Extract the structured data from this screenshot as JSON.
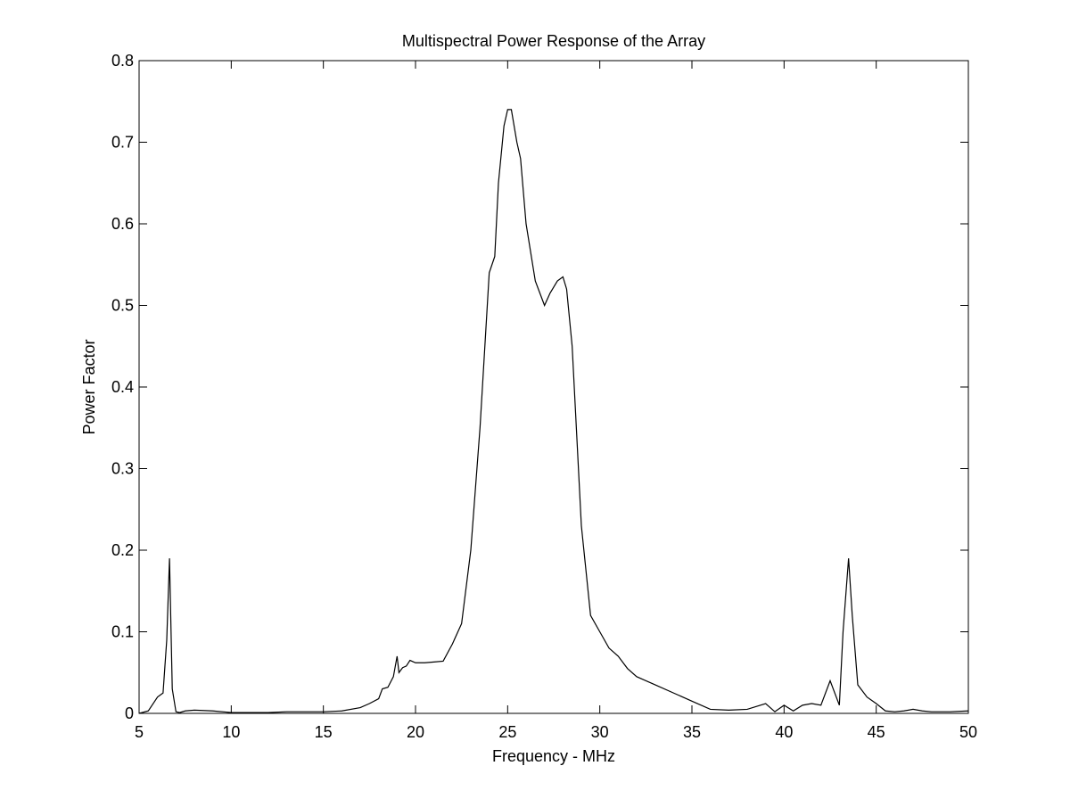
{
  "chart_data": {
    "type": "line",
    "title": "Multispectral Power Response of the Array",
    "xlabel": "Frequency - MHz",
    "ylabel": "Power Factor",
    "xlim": [
      5,
      50
    ],
    "ylim": [
      0,
      0.8
    ],
    "xticks": [
      5,
      10,
      15,
      20,
      25,
      30,
      35,
      40,
      45,
      50
    ],
    "yticks": [
      0,
      0.1,
      0.2,
      0.3,
      0.4,
      0.5,
      0.6,
      0.7,
      0.8
    ],
    "xtick_labels": [
      "5",
      "10",
      "15",
      "20",
      "25",
      "30",
      "35",
      "40",
      "45",
      "50"
    ],
    "ytick_labels": [
      "0",
      "0.1",
      "0.2",
      "0.3",
      "0.4",
      "0.5",
      "0.6",
      "0.7",
      "0.8"
    ],
    "grid": false,
    "legend": false,
    "line_color": "#000000",
    "series": [
      {
        "x": [
          5.0,
          5.5,
          6.0,
          6.3,
          6.5,
          6.65,
          6.8,
          7.0,
          7.2,
          7.5,
          8.0,
          9.0,
          10.0,
          11.0,
          12.0,
          13.0,
          14.0,
          15.0,
          16.0,
          17.0,
          17.5,
          18.0,
          18.2,
          18.5,
          18.8,
          19.0,
          19.1,
          19.3,
          19.5,
          19.7,
          20.0,
          20.5,
          21.0,
          21.5,
          22.0,
          22.3,
          22.5,
          23.0,
          23.5,
          24.0,
          24.3,
          24.5,
          24.8,
          25.0,
          25.2,
          25.5,
          25.7,
          26.0,
          26.5,
          27.0,
          27.3,
          27.7,
          28.0,
          28.2,
          28.5,
          29.0,
          29.5,
          30.0,
          30.5,
          31.0,
          31.5,
          32.0,
          33.0,
          34.0,
          35.0,
          36.0,
          37.0,
          38.0,
          39.0,
          39.5,
          40.0,
          40.5,
          41.0,
          41.5,
          42.0,
          42.5,
          43.0,
          43.2,
          43.5,
          43.7,
          44.0,
          44.5,
          45.0,
          45.5,
          46.0,
          46.5,
          47.0,
          47.5,
          48.0,
          49.0,
          50.0
        ],
        "y": [
          0.0,
          0.003,
          0.02,
          0.025,
          0.09,
          0.19,
          0.03,
          0.002,
          0.001,
          0.003,
          0.004,
          0.003,
          0.001,
          0.001,
          0.001,
          0.002,
          0.002,
          0.002,
          0.003,
          0.007,
          0.012,
          0.018,
          0.03,
          0.032,
          0.045,
          0.07,
          0.05,
          0.056,
          0.058,
          0.065,
          0.062,
          0.062,
          0.063,
          0.064,
          0.085,
          0.1,
          0.11,
          0.2,
          0.35,
          0.54,
          0.56,
          0.65,
          0.72,
          0.74,
          0.74,
          0.7,
          0.68,
          0.6,
          0.53,
          0.5,
          0.515,
          0.53,
          0.535,
          0.52,
          0.45,
          0.23,
          0.12,
          0.1,
          0.08,
          0.07,
          0.055,
          0.045,
          0.035,
          0.025,
          0.015,
          0.005,
          0.004,
          0.005,
          0.012,
          0.002,
          0.01,
          0.003,
          0.01,
          0.012,
          0.01,
          0.04,
          0.01,
          0.1,
          0.19,
          0.12,
          0.035,
          0.02,
          0.012,
          0.003,
          0.002,
          0.003,
          0.005,
          0.003,
          0.002,
          0.002,
          0.003
        ]
      }
    ]
  }
}
